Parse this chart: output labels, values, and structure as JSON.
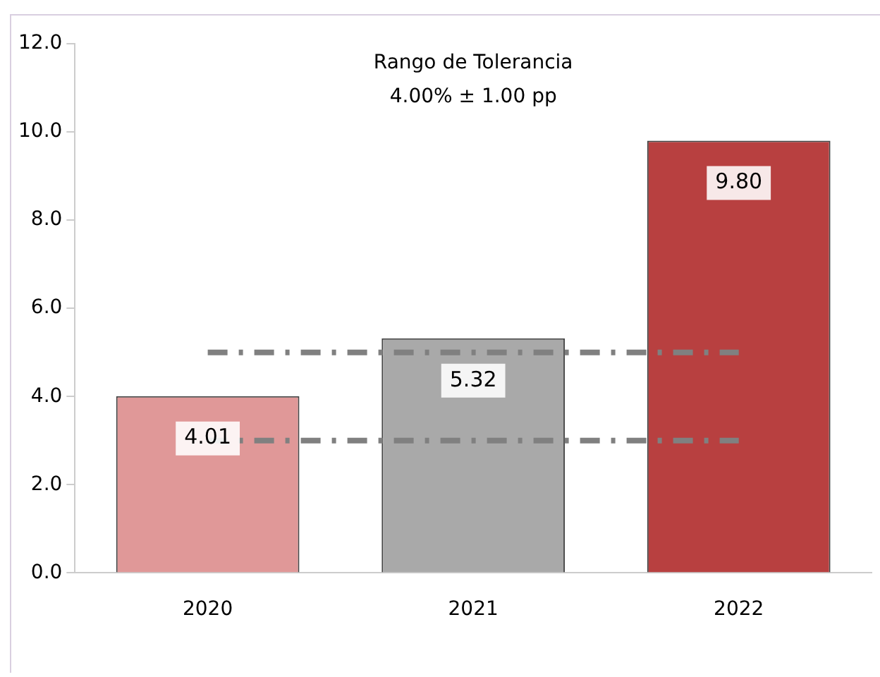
{
  "chart_data": {
    "type": "bar",
    "categories": [
      "2020",
      "2021",
      "2022"
    ],
    "values": [
      4.01,
      5.32,
      9.8
    ],
    "value_labels": [
      "4.01",
      "5.32",
      "9.80"
    ],
    "colors": [
      "#e09898",
      "#a9a9a9",
      "#b84040"
    ],
    "ylim": [
      0,
      12
    ],
    "yticks": [
      {
        "value": 0,
        "label": "0.0"
      },
      {
        "value": 2,
        "label": "2.0"
      },
      {
        "value": 4,
        "label": "4.0"
      },
      {
        "value": 6,
        "label": "6.0"
      },
      {
        "value": 8,
        "label": "8.0"
      },
      {
        "value": 10,
        "label": "10.0"
      },
      {
        "value": 12,
        "label": "12.0"
      }
    ],
    "grid": false,
    "legend": false,
    "ref_lines": [
      {
        "axis": "y",
        "value": 5,
        "color": "#808080",
        "line_style": "dashed"
      },
      {
        "axis": "y",
        "value": 3,
        "color": "#808080",
        "line_style": "dashed"
      }
    ],
    "annotations": [
      "Rango de Tolerancia",
      "4.00% ± 1.00 pp"
    ]
  }
}
